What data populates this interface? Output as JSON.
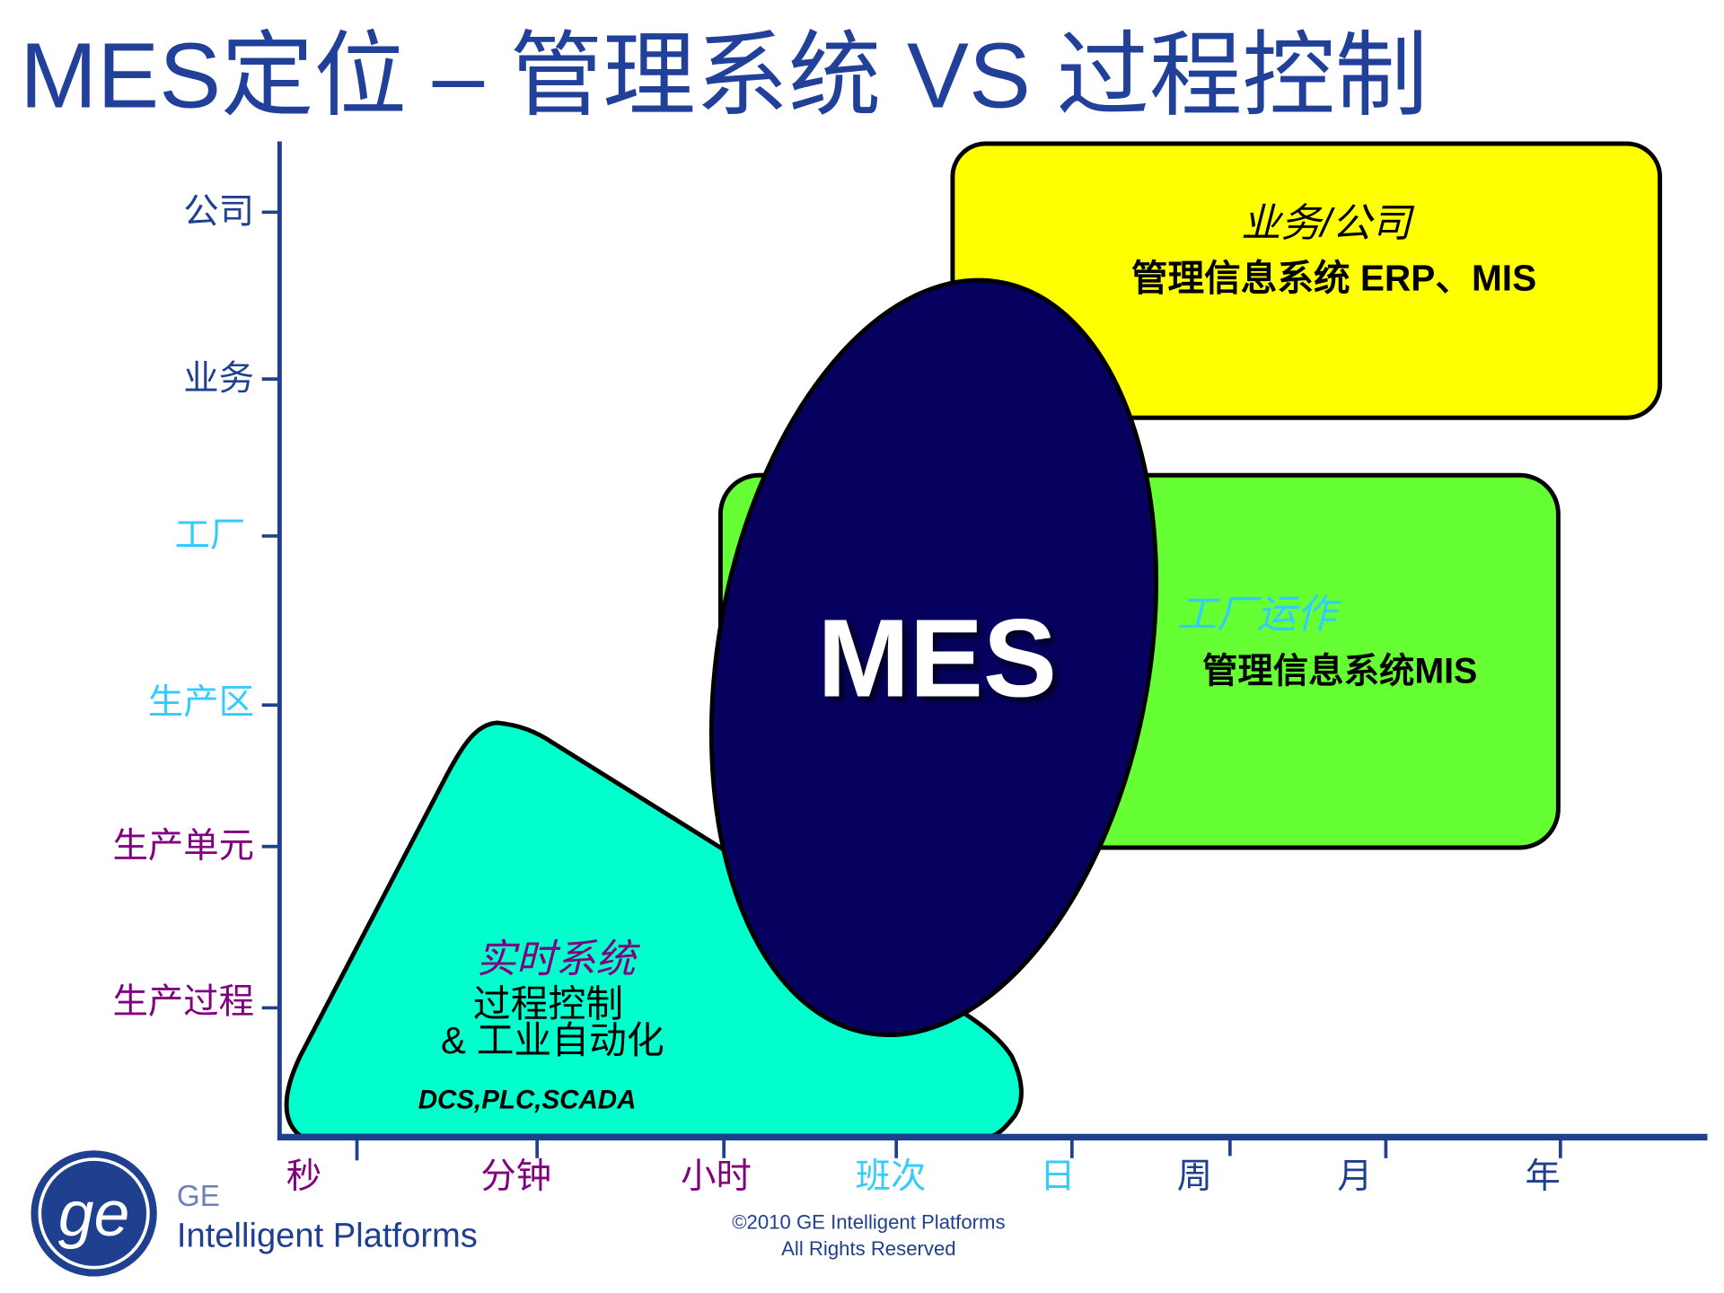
{
  "title": "MES定位 – 管理系统 VS 过程控制",
  "colors": {
    "title": "#21409A",
    "axis": "#1F3F8F",
    "purple": "#800080",
    "cyan": "#33CCFF",
    "yellow_box": "#FFFF00",
    "green_box": "#66FF33",
    "teal_shape": "#00FFCC",
    "mes_ellipse": "#06005E"
  },
  "y_axis": {
    "levels": [
      {
        "label": "公司"
      },
      {
        "label": "业务"
      },
      {
        "label": "工厂"
      },
      {
        "label": "生产区"
      },
      {
        "label": "生产单元"
      },
      {
        "label": "生产过程"
      }
    ]
  },
  "x_axis": {
    "units": [
      {
        "label": "秒"
      },
      {
        "label": "分钟"
      },
      {
        "label": "小时"
      },
      {
        "label": "班次"
      },
      {
        "label": "日"
      },
      {
        "label": "周"
      },
      {
        "label": "月"
      },
      {
        "label": "年"
      }
    ]
  },
  "regions": {
    "business": {
      "heading": "业务/公司",
      "text": "管理信息系统 ERP、MIS"
    },
    "plant": {
      "heading": "工厂运作",
      "text": "管理信息系统MIS"
    },
    "realtime": {
      "heading": "实时系统",
      "line1": "过程控制",
      "line2": "& 工业自动化",
      "examples": "DCS,PLC,SCADA"
    },
    "mes": {
      "label": "MES"
    }
  },
  "footer": {
    "brand_top": "GE",
    "brand_bottom": "Intelligent Platforms",
    "copyright_line1": "©2010 GE Intelligent Platforms",
    "copyright_line2": "All Rights Reserved"
  }
}
